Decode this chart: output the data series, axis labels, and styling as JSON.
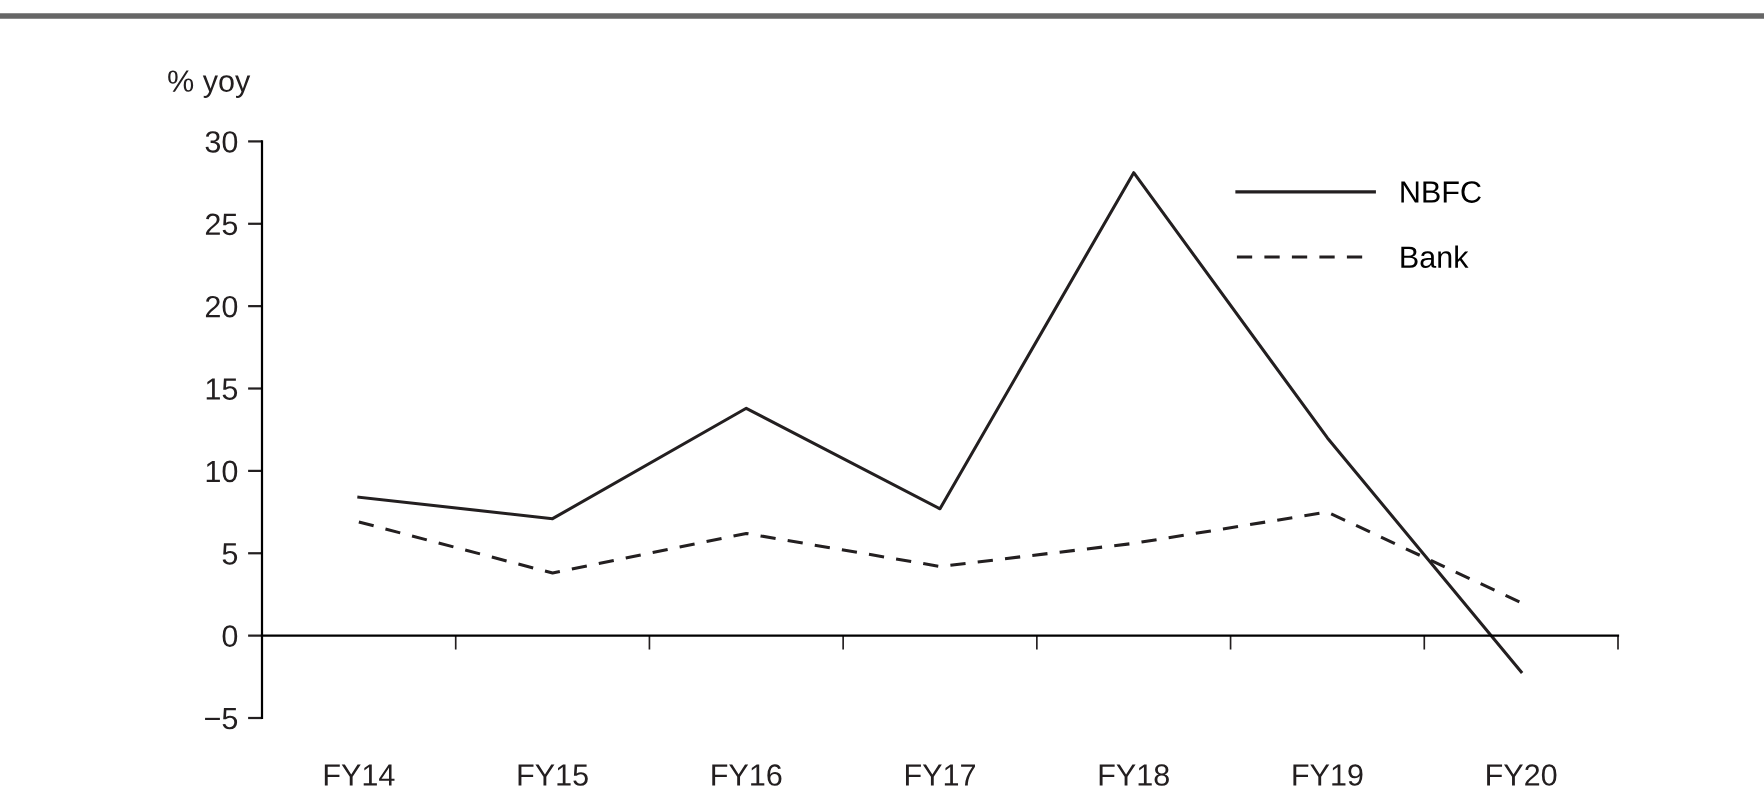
{
  "chart_data": {
    "type": "line",
    "ylabel": "% yoy",
    "categories": [
      "FY14",
      "FY15",
      "FY16",
      "FY17",
      "FY18",
      "FY19",
      "FY20"
    ],
    "series": [
      {
        "name": "NBFC",
        "color": "#231f20",
        "line_style": "solid",
        "values": [
          8.4,
          7.1,
          13.8,
          7.7,
          28.1,
          12.0,
          -2.2
        ]
      },
      {
        "name": "Bank",
        "color": "#231f20",
        "line_style": "dashed",
        "values": [
          6.9,
          3.8,
          6.2,
          4.2,
          5.6,
          7.5,
          2.0
        ]
      }
    ],
    "ylim": [
      -5,
      30
    ],
    "yticks": [
      {
        "value": -5,
        "label": "−5"
      },
      0,
      5,
      10,
      15,
      20,
      25,
      30
    ],
    "legend": "top right",
    "marker": "none"
  }
}
